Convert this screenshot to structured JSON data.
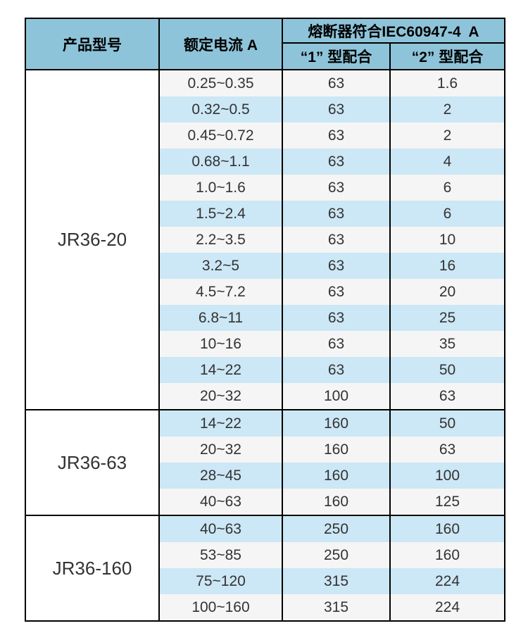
{
  "table": {
    "header": {
      "product": "产品型号",
      "current": "额定电流 A",
      "fuse_group": "熔断器符合IEC60947-4  A",
      "type1": "“1” 型配合",
      "type2": "“2” 型配合"
    },
    "sections": [
      {
        "model": "JR36-20",
        "rows": [
          {
            "current": "0.25~0.35",
            "type1": "63",
            "type2": "1.6"
          },
          {
            "current": "0.32~0.5",
            "type1": "63",
            "type2": "2"
          },
          {
            "current": "0.45~0.72",
            "type1": "63",
            "type2": "2"
          },
          {
            "current": "0.68~1.1",
            "type1": "63",
            "type2": "4"
          },
          {
            "current": "1.0~1.6",
            "type1": "63",
            "type2": "6"
          },
          {
            "current": "1.5~2.4",
            "type1": "63",
            "type2": "6"
          },
          {
            "current": "2.2~3.5",
            "type1": "63",
            "type2": "10"
          },
          {
            "current": "3.2~5",
            "type1": "63",
            "type2": "16"
          },
          {
            "current": "4.5~7.2",
            "type1": "63",
            "type2": "20"
          },
          {
            "current": "6.8~11",
            "type1": "63",
            "type2": "25"
          },
          {
            "current": "10~16",
            "type1": "63",
            "type2": "35"
          },
          {
            "current": "14~22",
            "type1": "63",
            "type2": "50"
          },
          {
            "current": "20~32",
            "type1": "100",
            "type2": "63"
          }
        ]
      },
      {
        "model": "JR36-63",
        "rows": [
          {
            "current": "14~22",
            "type1": "160",
            "type2": "50"
          },
          {
            "current": "20~32",
            "type1": "160",
            "type2": "63"
          },
          {
            "current": "28~45",
            "type1": "160",
            "type2": "100"
          },
          {
            "current": "40~63",
            "type1": "160",
            "type2": "125"
          }
        ]
      },
      {
        "model": "JR36-160",
        "rows": [
          {
            "current": "40~63",
            "type1": "250",
            "type2": "160"
          },
          {
            "current": "53~85",
            "type1": "250",
            "type2": "160"
          },
          {
            "current": "75~120",
            "type1": "315",
            "type2": "224"
          },
          {
            "current": "100~160",
            "type1": "315",
            "type2": "224"
          }
        ]
      }
    ],
    "colors": {
      "header_bg": "#8ec4d9",
      "row_blue": "#cce7f5",
      "row_light": "#f5f5f5",
      "model_bg": "#ffffff",
      "border": "#000000",
      "text": "#333333"
    }
  }
}
